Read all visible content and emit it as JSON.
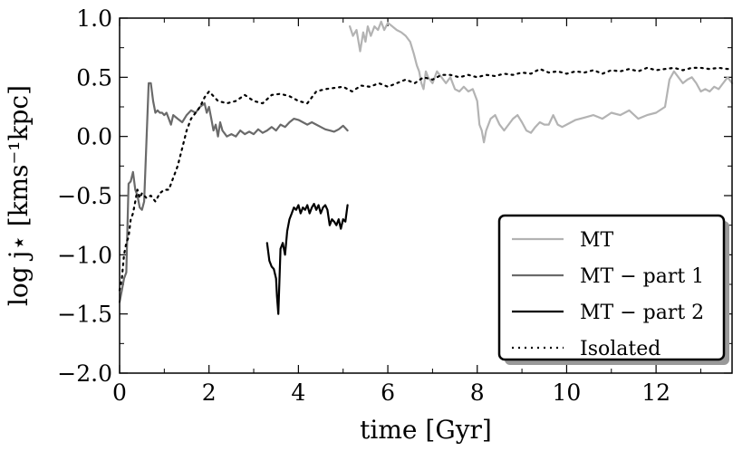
{
  "chart_data": {
    "type": "line",
    "xlabel": "time [Gyr]",
    "ylabel": "log j⋆ [kms⁻¹kpc]",
    "xlim": [
      0,
      13.7
    ],
    "ylim": [
      -2.0,
      1.0
    ],
    "xticks": [
      0,
      2,
      4,
      6,
      8,
      10,
      12
    ],
    "xtick_labels": [
      "0",
      "2",
      "4",
      "6",
      "8",
      "10",
      "12"
    ],
    "yticks": [
      -2.0,
      -1.5,
      -1.0,
      -0.5,
      0.0,
      0.5,
      1.0
    ],
    "ytick_labels": [
      "−2.0",
      "−1.5",
      "−1.0",
      "−0.5",
      "0.0",
      "0.5",
      "1.0"
    ],
    "legend_position": "lower-right",
    "series": [
      {
        "name": "MT",
        "color": "#b3b3b3",
        "style": "solid",
        "x": [
          5.15,
          5.22,
          5.3,
          5.38,
          5.45,
          5.5,
          5.55,
          5.62,
          5.7,
          5.78,
          5.85,
          5.92,
          6.0,
          6.1,
          6.2,
          6.3,
          6.4,
          6.5,
          6.58,
          6.65,
          6.7,
          6.75,
          6.8,
          6.85,
          6.9,
          7.0,
          7.1,
          7.2,
          7.3,
          7.4,
          7.5,
          7.6,
          7.7,
          7.8,
          7.9,
          8.0,
          8.05,
          8.1,
          8.15,
          8.2,
          8.3,
          8.4,
          8.5,
          8.6,
          8.7,
          8.8,
          8.9,
          9.0,
          9.1,
          9.2,
          9.3,
          9.4,
          9.5,
          9.6,
          9.7,
          9.8,
          9.9,
          10.0,
          10.2,
          10.4,
          10.6,
          10.8,
          11.0,
          11.2,
          11.4,
          11.6,
          11.8,
          12.0,
          12.2,
          12.3,
          12.4,
          12.5,
          12.6,
          12.7,
          12.8,
          12.9,
          13.0,
          13.1,
          13.2,
          13.3,
          13.4,
          13.5,
          13.6,
          13.7
        ],
        "values": [
          0.93,
          0.85,
          0.9,
          0.72,
          0.88,
          0.8,
          0.93,
          0.85,
          0.93,
          0.9,
          0.97,
          0.9,
          0.96,
          0.93,
          0.9,
          0.88,
          0.85,
          0.8,
          0.7,
          0.6,
          0.55,
          0.45,
          0.4,
          0.55,
          0.5,
          0.45,
          0.55,
          0.5,
          0.45,
          0.5,
          0.4,
          0.38,
          0.42,
          0.38,
          0.4,
          0.3,
          0.1,
          0.05,
          -0.05,
          0.05,
          0.15,
          0.18,
          0.1,
          0.05,
          0.1,
          0.15,
          0.18,
          0.12,
          0.05,
          0.03,
          0.08,
          0.12,
          0.1,
          0.1,
          0.18,
          0.1,
          0.08,
          0.1,
          0.14,
          0.16,
          0.18,
          0.15,
          0.2,
          0.18,
          0.22,
          0.15,
          0.18,
          0.2,
          0.25,
          0.48,
          0.55,
          0.5,
          0.45,
          0.48,
          0.5,
          0.45,
          0.38,
          0.4,
          0.38,
          0.42,
          0.4,
          0.45,
          0.5,
          0.45
        ]
      },
      {
        "name": "MT − part 1",
        "color": "#6a6a6a",
        "style": "solid",
        "x": [
          0.0,
          0.05,
          0.1,
          0.15,
          0.2,
          0.25,
          0.3,
          0.35,
          0.4,
          0.45,
          0.5,
          0.55,
          0.6,
          0.65,
          0.7,
          0.75,
          0.8,
          0.85,
          0.9,
          0.95,
          1.0,
          1.05,
          1.1,
          1.15,
          1.2,
          1.3,
          1.4,
          1.5,
          1.6,
          1.7,
          1.8,
          1.9,
          1.95,
          2.0,
          2.05,
          2.1,
          2.15,
          2.2,
          2.25,
          2.3,
          2.4,
          2.5,
          2.6,
          2.7,
          2.8,
          2.9,
          3.0,
          3.1,
          3.2,
          3.3,
          3.4,
          3.5,
          3.6,
          3.7,
          3.8,
          3.9,
          4.0,
          4.1,
          4.2,
          4.3,
          4.4,
          4.5,
          4.6,
          4.7,
          4.8,
          4.9,
          5.0,
          5.05,
          5.1
        ],
        "values": [
          -1.4,
          -1.3,
          -1.2,
          -1.15,
          -0.4,
          -0.38,
          -0.3,
          -0.45,
          -0.5,
          -0.6,
          -0.62,
          -0.55,
          -0.05,
          0.45,
          0.45,
          0.3,
          0.2,
          0.22,
          0.2,
          0.2,
          0.18,
          0.2,
          0.15,
          0.1,
          0.18,
          0.15,
          0.12,
          0.18,
          0.22,
          0.2,
          0.25,
          0.28,
          0.2,
          0.25,
          0.15,
          0.05,
          0.1,
          0.0,
          0.12,
          0.05,
          0.0,
          0.02,
          0.0,
          0.05,
          0.02,
          0.04,
          0.02,
          0.06,
          0.03,
          0.05,
          0.08,
          0.05,
          0.1,
          0.08,
          0.12,
          0.15,
          0.14,
          0.12,
          0.1,
          0.12,
          0.1,
          0.08,
          0.06,
          0.05,
          0.04,
          0.06,
          0.09,
          0.07,
          0.05
        ]
      },
      {
        "name": "MT − part 2",
        "color": "#000000",
        "style": "solid",
        "x": [
          3.3,
          3.35,
          3.4,
          3.45,
          3.5,
          3.52,
          3.55,
          3.6,
          3.65,
          3.7,
          3.75,
          3.8,
          3.85,
          3.9,
          3.95,
          4.0,
          4.05,
          4.1,
          4.15,
          4.2,
          4.25,
          4.3,
          4.35,
          4.4,
          4.45,
          4.5,
          4.55,
          4.6,
          4.65,
          4.7,
          4.75,
          4.8,
          4.85,
          4.9,
          4.95,
          5.0,
          5.05,
          5.1
        ],
        "values": [
          -0.9,
          -1.05,
          -1.1,
          -1.12,
          -1.2,
          -1.35,
          -1.5,
          -0.95,
          -0.9,
          -1.0,
          -0.8,
          -0.7,
          -0.65,
          -0.6,
          -0.62,
          -0.58,
          -0.65,
          -0.6,
          -0.62,
          -0.58,
          -0.65,
          -0.6,
          -0.57,
          -0.62,
          -0.58,
          -0.65,
          -0.6,
          -0.58,
          -0.62,
          -0.75,
          -0.7,
          -0.72,
          -0.75,
          -0.7,
          -0.78,
          -0.7,
          -0.72,
          -0.58
        ]
      },
      {
        "name": "Isolated",
        "color": "#000000",
        "style": "dotted",
        "x": [
          0.0,
          0.05,
          0.1,
          0.15,
          0.2,
          0.25,
          0.3,
          0.35,
          0.4,
          0.45,
          0.5,
          0.6,
          0.7,
          0.8,
          0.9,
          1.0,
          1.1,
          1.2,
          1.3,
          1.4,
          1.5,
          1.6,
          1.7,
          1.8,
          1.9,
          2.0,
          2.2,
          2.4,
          2.6,
          2.8,
          3.0,
          3.2,
          3.4,
          3.6,
          3.8,
          4.0,
          4.2,
          4.4,
          4.6,
          4.8,
          5.0,
          5.2,
          5.4,
          5.6,
          5.8,
          6.0,
          6.2,
          6.4,
          6.6,
          6.8,
          7.0,
          7.2,
          7.4,
          7.6,
          7.8,
          8.0,
          8.2,
          8.4,
          8.6,
          8.8,
          9.0,
          9.2,
          9.4,
          9.6,
          9.8,
          10.0,
          10.2,
          10.4,
          10.6,
          10.8,
          11.0,
          11.2,
          11.4,
          11.6,
          11.8,
          12.0,
          12.2,
          12.4,
          12.6,
          12.8,
          13.0,
          13.2,
          13.4,
          13.6,
          13.7
        ],
        "values": [
          -1.3,
          -1.2,
          -1.0,
          -0.9,
          -0.85,
          -0.7,
          -0.65,
          -0.55,
          -0.45,
          -0.52,
          -0.48,
          -0.52,
          -0.5,
          -0.55,
          -0.48,
          -0.45,
          -0.45,
          -0.35,
          -0.25,
          -0.1,
          0.05,
          0.15,
          0.2,
          0.25,
          0.33,
          0.38,
          0.3,
          0.28,
          0.3,
          0.35,
          0.3,
          0.28,
          0.35,
          0.36,
          0.34,
          0.3,
          0.28,
          0.38,
          0.4,
          0.41,
          0.42,
          0.38,
          0.43,
          0.42,
          0.45,
          0.42,
          0.45,
          0.48,
          0.45,
          0.5,
          0.48,
          0.52,
          0.52,
          0.5,
          0.52,
          0.5,
          0.52,
          0.51,
          0.53,
          0.52,
          0.54,
          0.53,
          0.57,
          0.54,
          0.55,
          0.53,
          0.55,
          0.54,
          0.56,
          0.53,
          0.56,
          0.55,
          0.57,
          0.55,
          0.58,
          0.56,
          0.57,
          0.58,
          0.56,
          0.58,
          0.58,
          0.57,
          0.58,
          0.57,
          0.58
        ]
      }
    ]
  }
}
